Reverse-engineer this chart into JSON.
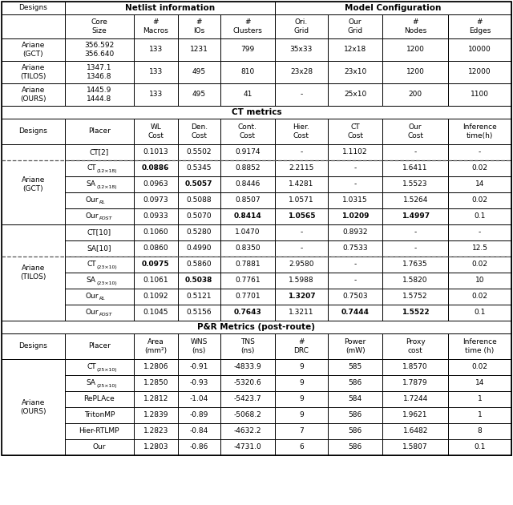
{
  "figsize": [
    6.4,
    6.3
  ],
  "dpi": 100,
  "bg": "#ffffff",
  "black": "#000000",
  "dash_color": "#555555",
  "LM": 2,
  "RM": 638,
  "col_widths_rel": [
    60,
    65,
    42,
    40,
    52,
    50,
    52,
    62,
    60
  ],
  "row_heights": {
    "s1_title": 16,
    "s1_col": 30,
    "s1_data": 28,
    "s2_title": 16,
    "s2_col": 32,
    "s2_data": 20,
    "s3_title": 16,
    "s3_col": 32,
    "s3_data": 20
  },
  "s1_col_headers": [
    "Core\nSize",
    "#\nMacros",
    "#\nIOs",
    "#\nClusters",
    "Ori.\nGrid",
    "Our\nGrid",
    "#\nNodes",
    "#\nEdges"
  ],
  "s1_data": [
    [
      "Ariane\n(GCT)",
      "356.592\n356.640",
      "133",
      "1231",
      "799",
      "35x33",
      "12x18",
      "1200",
      "10000"
    ],
    [
      "Ariane\n(TILOS)",
      "1347.1\n1346.8",
      "133",
      "495",
      "810",
      "23x28",
      "23x10",
      "1200",
      "12000"
    ],
    [
      "Ariane\n(OURS)",
      "1445.9\n1444.8",
      "133",
      "495",
      "41",
      "-",
      "25x10",
      "200",
      "1100"
    ]
  ],
  "s2_col_headers": [
    "Designs",
    "Placer",
    "WL\nCost",
    "Den.\nCost",
    "Cont.\nCost",
    "Hier.\nCost",
    "CT\nCost",
    "Our\nCost",
    "Inference\ntime(h)"
  ],
  "gct_rows": [
    {
      "placer": "CT[2]",
      "vals": [
        "0.1013",
        "0.5502",
        "0.9174",
        "-",
        "1.1102",
        "-",
        "-"
      ],
      "bold_vals": [
        false,
        false,
        false,
        false,
        false,
        false,
        false
      ],
      "dashed_above": false
    },
    {
      "placer": "CT_(12x18)",
      "vals": [
        "0.0886",
        "0.5345",
        "0.8852",
        "2.2115",
        "-",
        "1.6411",
        "0.02"
      ],
      "bold_vals": [
        true,
        false,
        false,
        false,
        false,
        false,
        false
      ],
      "dashed_above": true
    },
    {
      "placer": "SA_(12x18)",
      "vals": [
        "0.0963",
        "0.5057",
        "0.8446",
        "1.4281",
        "-",
        "1.5523",
        "14"
      ],
      "bold_vals": [
        false,
        true,
        false,
        false,
        false,
        false,
        false
      ],
      "dashed_above": false
    },
    {
      "placer": "Our_RL",
      "vals": [
        "0.0973",
        "0.5088",
        "0.8507",
        "1.0571",
        "1.0315",
        "1.5264",
        "0.02"
      ],
      "bold_vals": [
        false,
        false,
        false,
        false,
        false,
        false,
        false
      ],
      "dashed_above": false
    },
    {
      "placer": "Our_POST",
      "vals": [
        "0.0933",
        "0.5070",
        "0.8414",
        "1.0565",
        "1.0209",
        "1.4997",
        "0.1"
      ],
      "bold_vals": [
        false,
        false,
        true,
        true,
        true,
        true,
        false
      ],
      "dashed_above": false
    }
  ],
  "tilos_rows": [
    {
      "placer": "CT[10]",
      "vals": [
        "0.1060",
        "0.5280",
        "1.0470",
        "-",
        "0.8932",
        "-",
        "-"
      ],
      "bold_vals": [
        false,
        false,
        false,
        false,
        false,
        false,
        false
      ],
      "dashed_above": false
    },
    {
      "placer": "SA[10]",
      "vals": [
        "0.0860",
        "0.4990",
        "0.8350",
        "-",
        "0.7533",
        "-",
        "12.5"
      ],
      "bold_vals": [
        false,
        false,
        false,
        false,
        false,
        false,
        false
      ],
      "dashed_above": false
    },
    {
      "placer": "CT_(23x10)",
      "vals": [
        "0.0975",
        "0.5860",
        "0.7881",
        "2.9580",
        "-",
        "1.7635",
        "0.02"
      ],
      "bold_vals": [
        true,
        false,
        false,
        false,
        false,
        false,
        false
      ],
      "dashed_above": true
    },
    {
      "placer": "SA_(23x10)",
      "vals": [
        "0.1061",
        "0.5038",
        "0.7761",
        "1.5988",
        "-",
        "1.5820",
        "10"
      ],
      "bold_vals": [
        false,
        true,
        false,
        false,
        false,
        false,
        false
      ],
      "dashed_above": false
    },
    {
      "placer": "Our_RL",
      "vals": [
        "0.1092",
        "0.5121",
        "0.7701",
        "1.3207",
        "0.7503",
        "1.5752",
        "0.02"
      ],
      "bold_vals": [
        false,
        false,
        false,
        true,
        false,
        false,
        false
      ],
      "dashed_above": false
    },
    {
      "placer": "Our_POST",
      "vals": [
        "0.1045",
        "0.5156",
        "0.7643",
        "1.3211",
        "0.7444",
        "1.5522",
        "0.1"
      ],
      "bold_vals": [
        false,
        false,
        true,
        false,
        true,
        true,
        false
      ],
      "dashed_above": false
    }
  ],
  "s3_col_headers": [
    "Designs",
    "Placer",
    "Area\n(mm²)",
    "WNS\n(ns)",
    "TNS\n(ns)",
    "#\nDRC",
    "Power\n(mW)",
    "Proxy\ncost",
    "Inference\ntime (h)"
  ],
  "pr_rows": [
    {
      "placer": "CT_(25x10)",
      "vals": [
        "1.2806",
        "-0.91",
        "-4833.9",
        "9",
        "585",
        "1.8570",
        "0.02"
      ]
    },
    {
      "placer": "SA_(25x10)",
      "vals": [
        "1.2850",
        "-0.93",
        "-5320.6",
        "9",
        "586",
        "1.7879",
        "14"
      ]
    },
    {
      "placer": "RePLAce",
      "vals": [
        "1.2812",
        "-1.04",
        "-5423.7",
        "9",
        "584",
        "1.7244",
        "1"
      ]
    },
    {
      "placer": "TritonMP",
      "vals": [
        "1.2839",
        "-0.89",
        "-5068.2",
        "9",
        "586",
        "1.9621",
        "1"
      ]
    },
    {
      "placer": "Hier-RTLMP",
      "vals": [
        "1.2823",
        "-0.84",
        "-4632.2",
        "7",
        "586",
        "1.6482",
        "8"
      ]
    },
    {
      "placer": "Our",
      "vals": [
        "1.2803",
        "-0.86",
        "-4731.0",
        "6",
        "586",
        "1.5807",
        "0.1"
      ]
    }
  ]
}
